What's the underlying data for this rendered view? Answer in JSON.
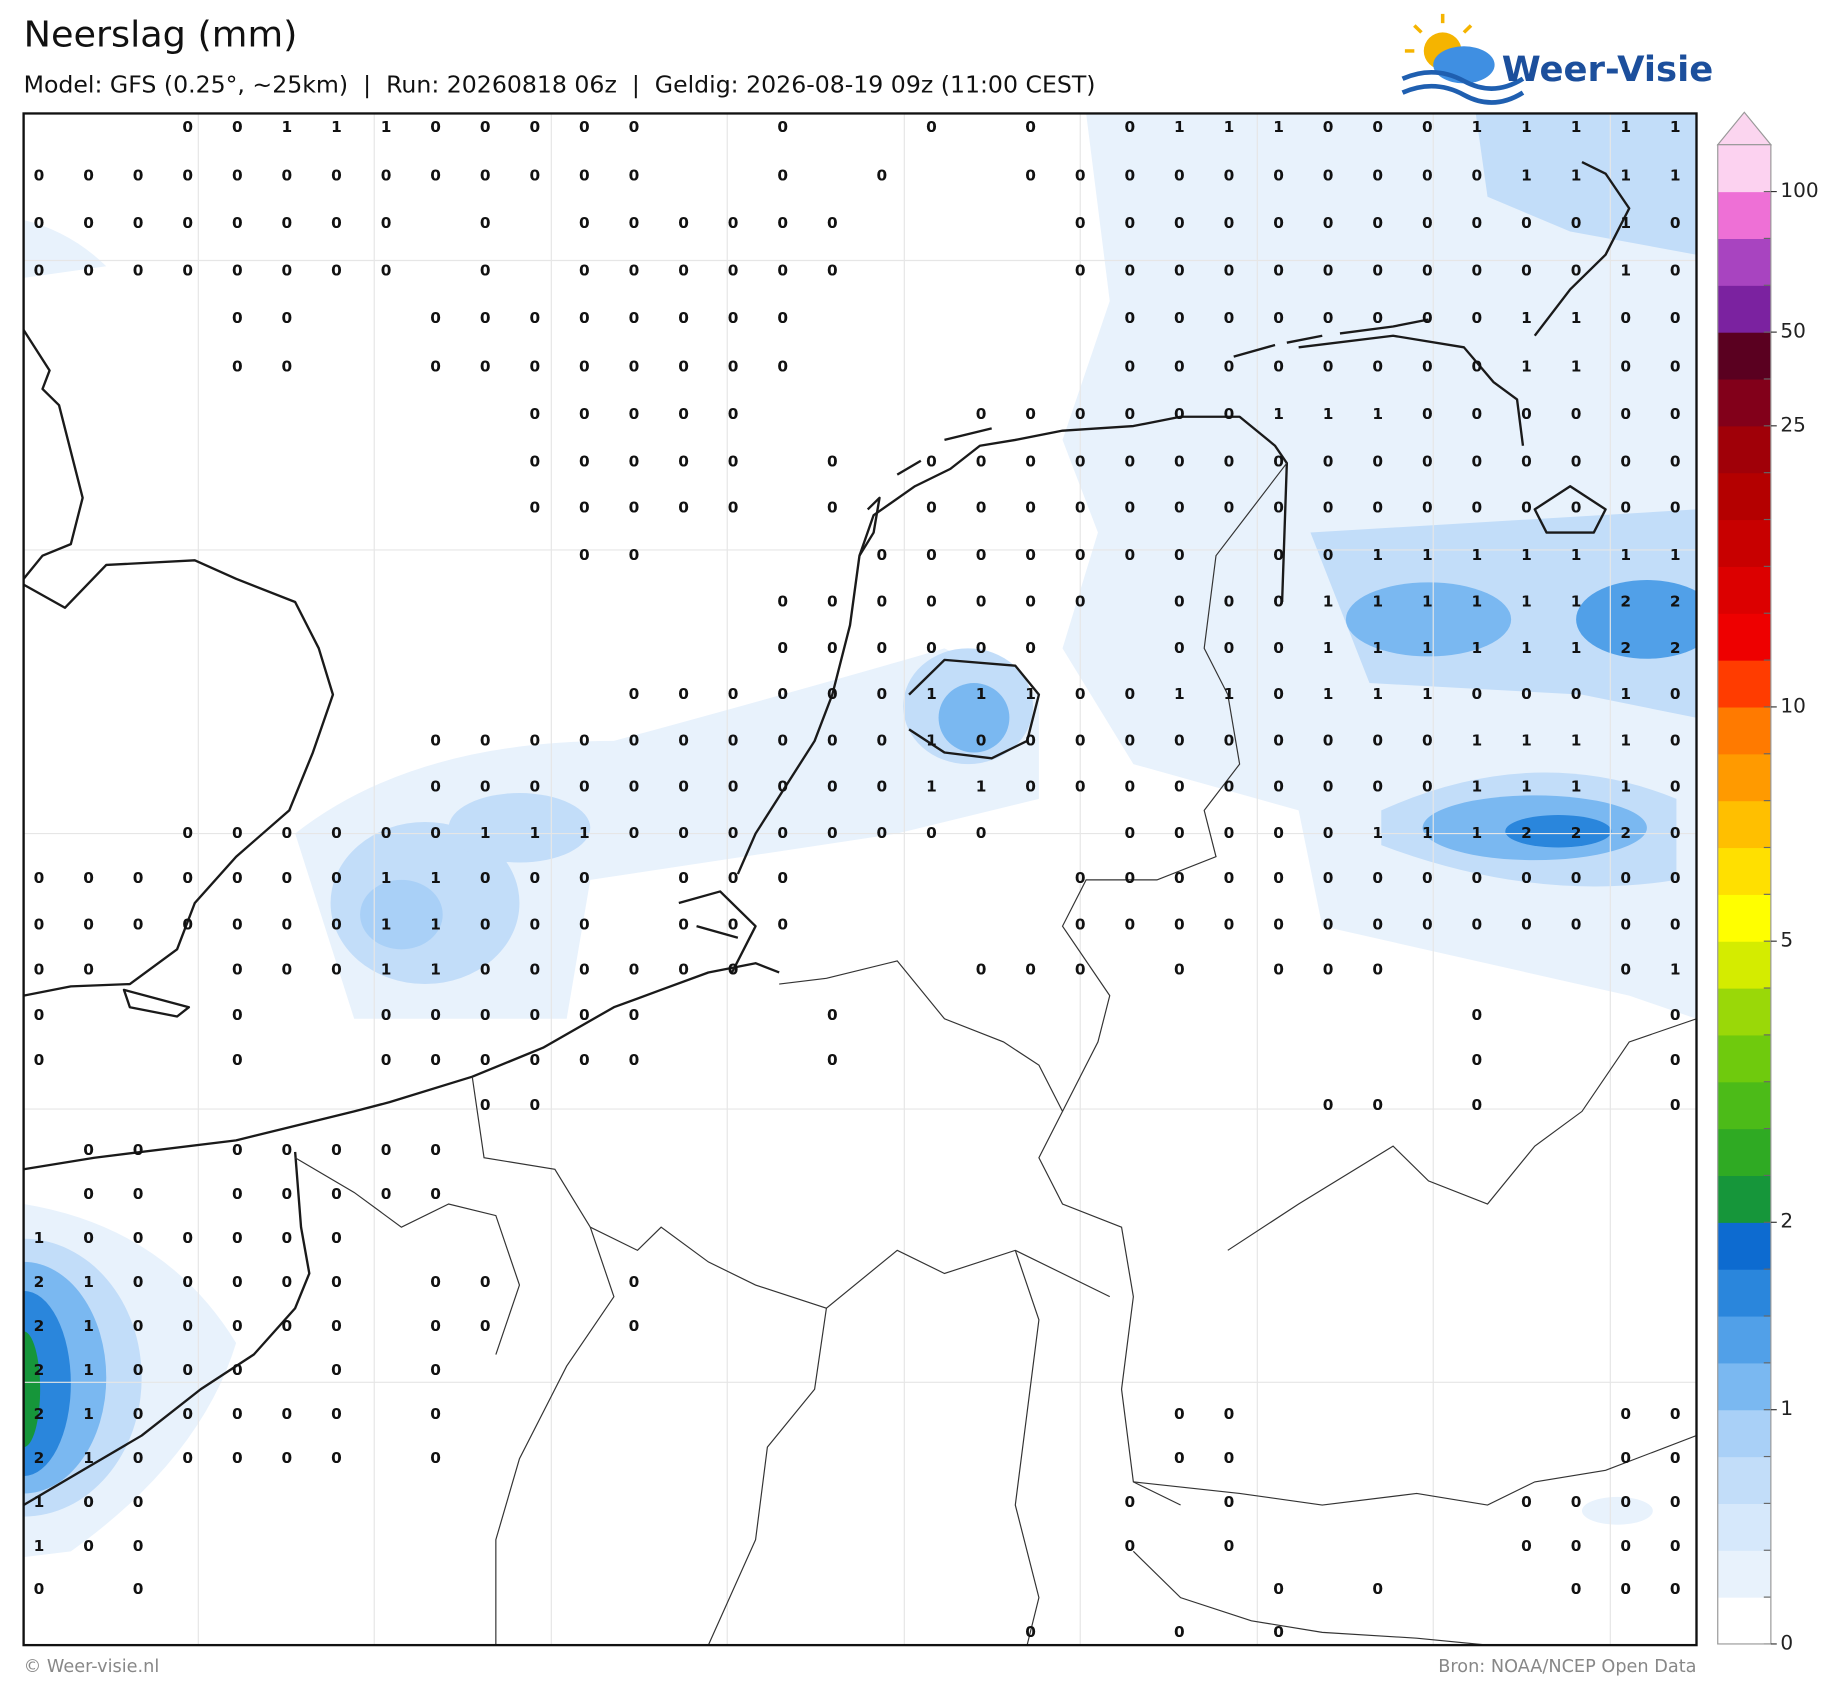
{
  "header": {
    "title": "Neerslag (mm)",
    "subtitle": "Model: GFS (0.25°, ~25km)  |  Run: 20260818 06z  |  Geldig: 2026-08-19 09z (11:00 CEST)",
    "logo": "Weer-Visie"
  },
  "grid_values": [
    [
      null,
      null,
      null,
      0,
      0,
      1,
      1,
      1,
      0,
      0,
      0,
      0,
      0,
      null,
      null,
      0,
      null,
      null,
      0,
      null,
      0,
      null,
      0,
      1,
      1,
      1,
      0,
      0,
      0,
      1,
      1,
      1,
      1,
      1
    ],
    [
      0,
      0,
      0,
      0,
      0,
      0,
      0,
      0,
      0,
      0,
      0,
      0,
      0,
      null,
      null,
      0,
      null,
      0,
      null,
      null,
      0,
      0,
      0,
      0,
      0,
      0,
      0,
      0,
      0,
      0,
      1,
      1,
      1,
      1
    ],
    [
      0,
      0,
      0,
      0,
      0,
      0,
      0,
      0,
      null,
      0,
      null,
      0,
      0,
      0,
      0,
      0,
      0,
      null,
      null,
      null,
      null,
      0,
      0,
      0,
      0,
      0,
      0,
      0,
      0,
      0,
      0,
      0,
      1,
      0
    ],
    [
      0,
      0,
      0,
      0,
      0,
      0,
      0,
      0,
      null,
      0,
      null,
      0,
      0,
      0,
      0,
      0,
      0,
      null,
      null,
      null,
      null,
      0,
      0,
      0,
      0,
      0,
      0,
      0,
      0,
      0,
      0,
      0,
      1,
      0
    ],
    [
      null,
      null,
      null,
      null,
      0,
      0,
      null,
      null,
      0,
      0,
      0,
      0,
      0,
      0,
      0,
      0,
      null,
      null,
      null,
      null,
      null,
      null,
      0,
      0,
      0,
      0,
      0,
      0,
      0,
      0,
      1,
      1,
      0,
      0
    ],
    [
      null,
      null,
      null,
      null,
      0,
      0,
      null,
      null,
      0,
      0,
      0,
      0,
      0,
      0,
      0,
      0,
      null,
      null,
      null,
      null,
      null,
      null,
      0,
      0,
      0,
      0,
      0,
      0,
      0,
      0,
      1,
      1,
      0,
      0
    ],
    [
      null,
      null,
      null,
      null,
      null,
      null,
      null,
      null,
      null,
      null,
      0,
      0,
      0,
      0,
      0,
      null,
      null,
      null,
      null,
      0,
      0,
      0,
      0,
      0,
      0,
      1,
      1,
      1,
      0,
      0,
      0,
      0,
      0,
      0
    ],
    [
      null,
      null,
      null,
      null,
      null,
      null,
      null,
      null,
      null,
      null,
      0,
      0,
      0,
      0,
      0,
      null,
      0,
      null,
      0,
      0,
      0,
      0,
      0,
      0,
      0,
      0,
      0,
      0,
      0,
      0,
      0,
      0,
      0,
      0
    ],
    [
      null,
      null,
      null,
      null,
      null,
      null,
      null,
      null,
      null,
      null,
      0,
      0,
      0,
      0,
      0,
      null,
      0,
      null,
      0,
      0,
      0,
      0,
      0,
      0,
      0,
      0,
      0,
      0,
      0,
      0,
      0,
      0,
      0,
      0
    ],
    [
      null,
      null,
      null,
      null,
      null,
      null,
      null,
      null,
      null,
      null,
      null,
      0,
      0,
      null,
      null,
      null,
      null,
      0,
      0,
      0,
      0,
      0,
      0,
      0,
      null,
      0,
      0,
      1,
      1,
      1,
      1,
      1,
      1,
      1
    ],
    [
      null,
      null,
      null,
      null,
      null,
      null,
      null,
      null,
      null,
      null,
      null,
      null,
      null,
      null,
      null,
      0,
      0,
      0,
      0,
      0,
      0,
      0,
      null,
      0,
      0,
      0,
      1,
      1,
      1,
      1,
      1,
      1,
      2,
      2
    ],
    [
      null,
      null,
      null,
      null,
      null,
      null,
      null,
      null,
      null,
      null,
      null,
      null,
      null,
      null,
      null,
      0,
      0,
      0,
      0,
      0,
      0,
      null,
      null,
      0,
      0,
      0,
      1,
      1,
      1,
      1,
      1,
      1,
      2,
      2
    ],
    [
      null,
      null,
      null,
      null,
      null,
      null,
      null,
      null,
      null,
      null,
      null,
      null,
      0,
      0,
      0,
      0,
      0,
      0,
      1,
      1,
      1,
      0,
      0,
      1,
      1,
      0,
      1,
      1,
      1,
      0,
      0,
      0,
      1,
      0
    ],
    [
      null,
      null,
      null,
      null,
      null,
      null,
      null,
      null,
      0,
      0,
      0,
      0,
      0,
      0,
      0,
      0,
      0,
      0,
      1,
      0,
      0,
      0,
      0,
      0,
      0,
      0,
      0,
      0,
      0,
      1,
      1,
      1,
      1,
      0
    ],
    [
      null,
      null,
      null,
      null,
      null,
      null,
      null,
      null,
      0,
      0,
      0,
      0,
      0,
      0,
      0,
      0,
      0,
      0,
      1,
      1,
      0,
      0,
      0,
      0,
      0,
      0,
      0,
      0,
      0,
      1,
      1,
      1,
      1,
      0
    ],
    [
      null,
      null,
      null,
      0,
      0,
      0,
      0,
      0,
      0,
      1,
      1,
      1,
      0,
      0,
      0,
      0,
      0,
      0,
      0,
      0,
      null,
      null,
      0,
      0,
      0,
      0,
      0,
      1,
      1,
      1,
      2,
      2,
      2,
      0
    ],
    [
      0,
      0,
      0,
      0,
      0,
      0,
      0,
      1,
      1,
      0,
      0,
      0,
      null,
      0,
      0,
      0,
      null,
      null,
      null,
      null,
      null,
      0,
      0,
      0,
      0,
      0,
      0,
      0,
      0,
      0,
      0,
      0,
      0,
      0
    ],
    [
      0,
      0,
      0,
      0,
      0,
      0,
      0,
      1,
      1,
      0,
      0,
      0,
      null,
      0,
      0,
      0,
      null,
      null,
      null,
      null,
      null,
      0,
      0,
      0,
      0,
      0,
      0,
      0,
      0,
      0,
      0,
      0,
      0,
      0
    ],
    [
      0,
      0,
      null,
      null,
      0,
      0,
      0,
      1,
      1,
      0,
      0,
      0,
      0,
      0,
      0,
      null,
      null,
      null,
      null,
      0,
      0,
      0,
      null,
      0,
      null,
      0,
      0,
      0,
      null,
      null,
      null,
      null,
      0,
      1
    ],
    [
      0,
      null,
      null,
      null,
      0,
      null,
      null,
      0,
      0,
      0,
      0,
      0,
      0,
      null,
      null,
      null,
      0,
      null,
      null,
      null,
      null,
      null,
      null,
      null,
      null,
      null,
      null,
      null,
      null,
      0,
      null,
      null,
      null,
      0
    ],
    [
      0,
      null,
      null,
      null,
      0,
      null,
      null,
      0,
      0,
      0,
      0,
      0,
      0,
      null,
      null,
      null,
      0,
      null,
      null,
      null,
      null,
      null,
      null,
      null,
      null,
      null,
      null,
      null,
      null,
      0,
      null,
      null,
      null,
      0
    ],
    [
      null,
      null,
      null,
      null,
      null,
      null,
      null,
      null,
      null,
      0,
      0,
      null,
      null,
      null,
      null,
      null,
      null,
      null,
      null,
      null,
      null,
      null,
      null,
      null,
      null,
      null,
      0,
      0,
      null,
      0,
      null,
      null,
      null,
      0
    ],
    [
      null,
      0,
      0,
      null,
      0,
      0,
      0,
      0,
      0,
      null,
      null,
      null,
      null,
      null,
      null,
      null,
      null,
      null,
      null,
      null,
      null,
      null,
      null,
      null,
      null,
      null,
      null,
      null,
      null,
      null,
      null,
      null,
      null,
      null
    ],
    [
      null,
      0,
      0,
      null,
      0,
      0,
      0,
      0,
      0,
      null,
      null,
      null,
      null,
      null,
      null,
      null,
      null,
      null,
      null,
      null,
      null,
      null,
      null,
      null,
      null,
      null,
      null,
      null,
      null,
      null,
      null,
      null,
      null,
      null
    ],
    [
      1,
      0,
      0,
      0,
      0,
      0,
      0,
      null,
      null,
      null,
      null,
      null,
      null,
      null,
      null,
      null,
      null,
      null,
      null,
      null,
      null,
      null,
      null,
      null,
      null,
      null,
      null,
      null,
      null,
      null,
      null,
      null,
      null,
      null
    ],
    [
      2,
      1,
      0,
      0,
      0,
      0,
      0,
      null,
      0,
      0,
      null,
      null,
      0,
      null,
      null,
      null,
      null,
      null,
      null,
      null,
      null,
      null,
      null,
      null,
      null,
      null,
      null,
      null,
      null,
      null,
      null,
      null,
      null,
      null
    ],
    [
      2,
      1,
      0,
      0,
      0,
      0,
      0,
      null,
      0,
      0,
      null,
      null,
      0,
      null,
      null,
      null,
      null,
      null,
      null,
      null,
      null,
      null,
      null,
      null,
      null,
      null,
      null,
      null,
      null,
      null,
      null,
      null,
      null,
      null
    ],
    [
      2,
      1,
      0,
      0,
      0,
      null,
      0,
      null,
      0,
      null,
      null,
      null,
      null,
      null,
      null,
      null,
      null,
      null,
      null,
      null,
      null,
      null,
      null,
      null,
      null,
      null,
      null,
      null,
      null,
      null,
      null,
      null,
      null,
      null
    ],
    [
      2,
      1,
      0,
      0,
      0,
      0,
      0,
      null,
      0,
      null,
      null,
      null,
      null,
      null,
      null,
      null,
      null,
      null,
      null,
      null,
      null,
      null,
      null,
      0,
      0,
      null,
      null,
      null,
      null,
      null,
      null,
      null,
      0,
      0
    ],
    [
      2,
      1,
      0,
      0,
      0,
      0,
      0,
      null,
      0,
      null,
      null,
      null,
      null,
      null,
      null,
      null,
      null,
      null,
      null,
      null,
      null,
      null,
      null,
      0,
      0,
      null,
      null,
      null,
      null,
      null,
      null,
      null,
      0,
      0
    ],
    [
      1,
      0,
      0,
      null,
      null,
      null,
      null,
      null,
      null,
      null,
      null,
      null,
      null,
      null,
      null,
      null,
      null,
      null,
      null,
      null,
      null,
      null,
      0,
      null,
      0,
      null,
      null,
      null,
      null,
      null,
      0,
      0,
      0,
      0
    ],
    [
      1,
      0,
      0,
      null,
      null,
      null,
      null,
      null,
      null,
      null,
      null,
      null,
      null,
      null,
      null,
      null,
      null,
      null,
      null,
      null,
      null,
      null,
      0,
      null,
      0,
      null,
      null,
      null,
      null,
      null,
      0,
      0,
      0,
      0
    ],
    [
      0,
      null,
      0,
      null,
      null,
      null,
      null,
      null,
      null,
      null,
      null,
      null,
      null,
      null,
      null,
      null,
      null,
      null,
      null,
      null,
      null,
      null,
      null,
      null,
      null,
      0,
      null,
      0,
      null,
      null,
      null,
      0,
      0,
      0
    ],
    [
      null,
      null,
      null,
      null,
      null,
      null,
      null,
      null,
      null,
      null,
      null,
      null,
      null,
      null,
      null,
      null,
      null,
      null,
      null,
      null,
      0,
      null,
      null,
      0,
      null,
      0,
      null,
      null,
      null,
      null,
      null,
      null,
      null,
      null
    ]
  ],
  "colorbar": {
    "colors": [
      "#ffffff",
      "#e8f2fc",
      "#d6e8fb",
      "#c2ddf9",
      "#a9d0f7",
      "#7ab8f1",
      "#51a0e8",
      "#2a86dc",
      "#0d6bd0",
      "#16963a",
      "#2faa23",
      "#4cbb18",
      "#6fca0d",
      "#9ad808",
      "#d4ec00",
      "#ffff00",
      "#ffe000",
      "#ffbf00",
      "#ff9a00",
      "#ff7a00",
      "#ff3c00",
      "#ee0000",
      "#dc0000",
      "#c80000",
      "#b40000",
      "#a00008",
      "#82001a",
      "#5a0020",
      "#7b22a0",
      "#a844c0",
      "#ee70d6",
      "#fcd2f0"
    ],
    "extend_color": "#fbd5ef",
    "labels": [
      0,
      1,
      2,
      5,
      10,
      25,
      50,
      100
    ]
  },
  "footer": {
    "copyright": "© Weer-visie.nl",
    "source": "Bron: NOAA/NCEP Open Data"
  }
}
